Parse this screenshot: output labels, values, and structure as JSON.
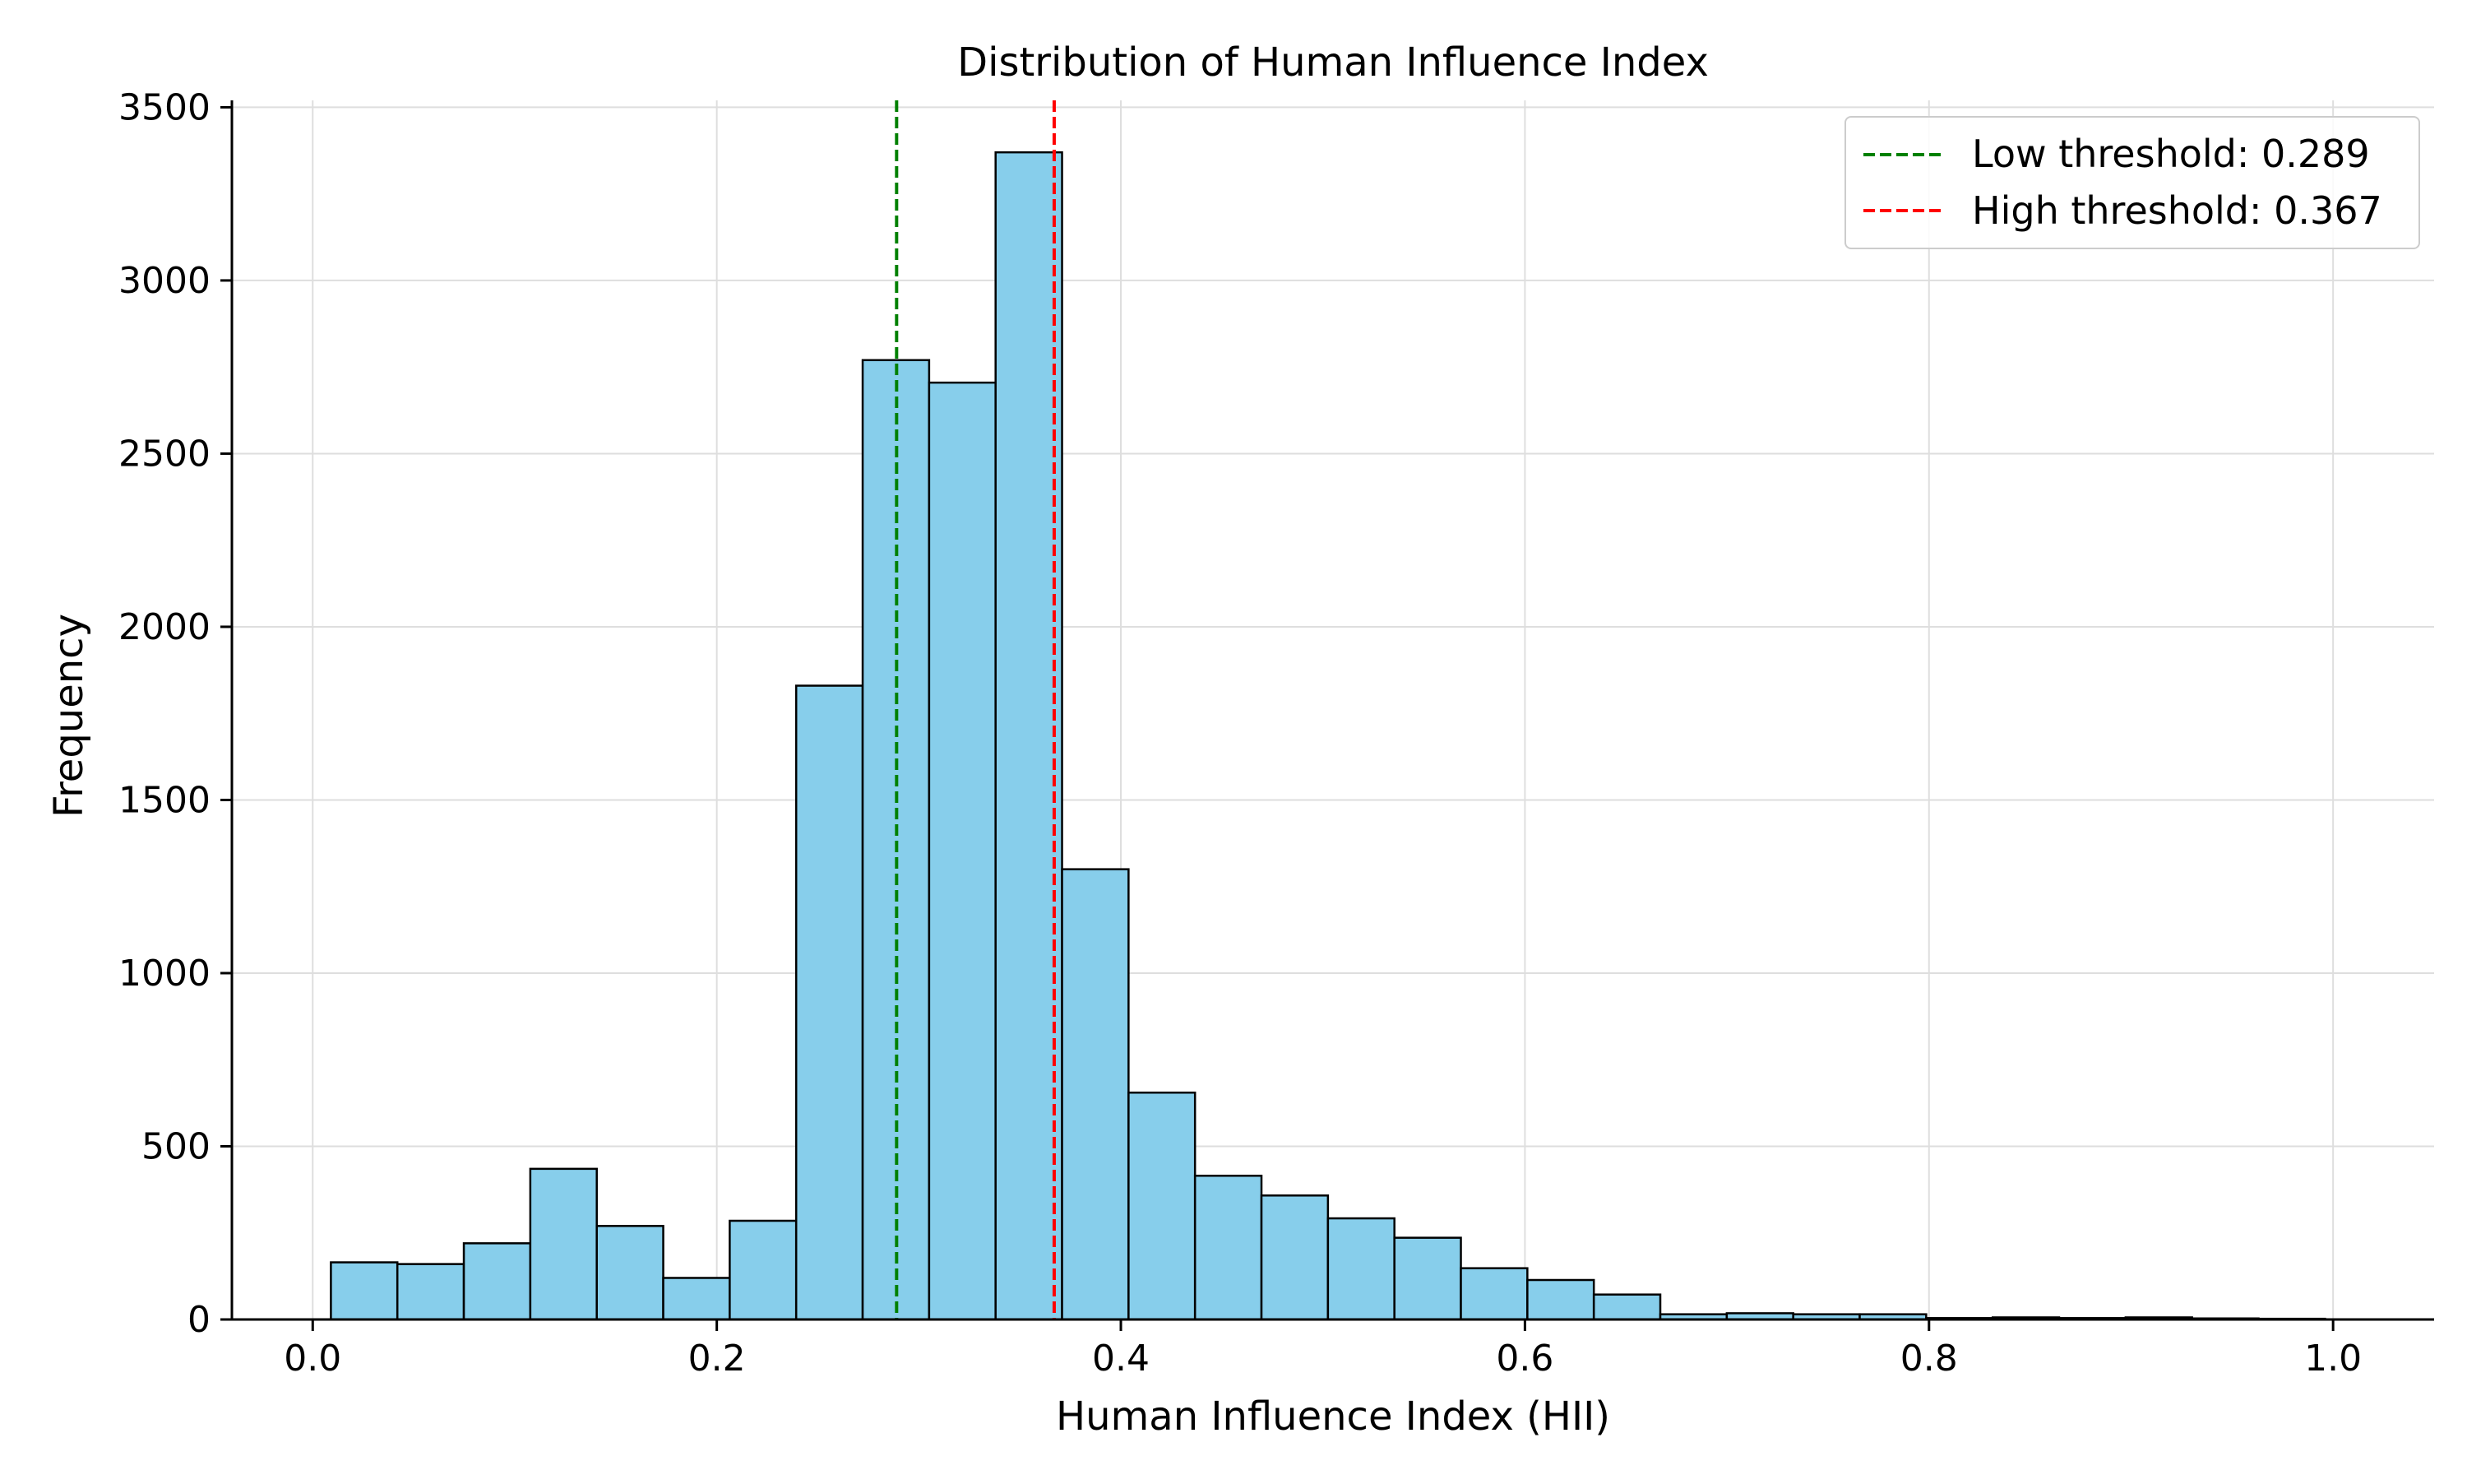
{
  "chart_data": {
    "type": "bar",
    "title": "Distribution of Human Influence Index",
    "xlabel": "Human Influence Index (HII)",
    "ylabel": "Frequency",
    "xlim": [
      -0.04,
      1.05
    ],
    "ylim": [
      0,
      3520
    ],
    "x_ticks": [
      "0.0",
      "0.2",
      "0.4",
      "0.6",
      "0.8",
      "1.0"
    ],
    "y_ticks": [
      "0",
      "500",
      "1000",
      "1500",
      "2000",
      "2500",
      "3000",
      "3500"
    ],
    "grid": true,
    "legend_position": "top-right",
    "bin_start": 0.009,
    "bin_width": 0.0329,
    "counts": [
      165,
      160,
      220,
      435,
      270,
      120,
      285,
      1830,
      2770,
      2705,
      3370,
      1300,
      655,
      415,
      358,
      292,
      236,
      148,
      114,
      72,
      15,
      18,
      15,
      15,
      4,
      6,
      4,
      6,
      3,
      2
    ],
    "bar_color": "#87CEEB",
    "bar_edge_color": "#000000",
    "thresholds": [
      {
        "label": "Low threshold: 0.289",
        "value": 0.289,
        "color": "#008000"
      },
      {
        "label": "High threshold: 0.367",
        "value": 0.367,
        "color": "#FF0000"
      }
    ]
  }
}
